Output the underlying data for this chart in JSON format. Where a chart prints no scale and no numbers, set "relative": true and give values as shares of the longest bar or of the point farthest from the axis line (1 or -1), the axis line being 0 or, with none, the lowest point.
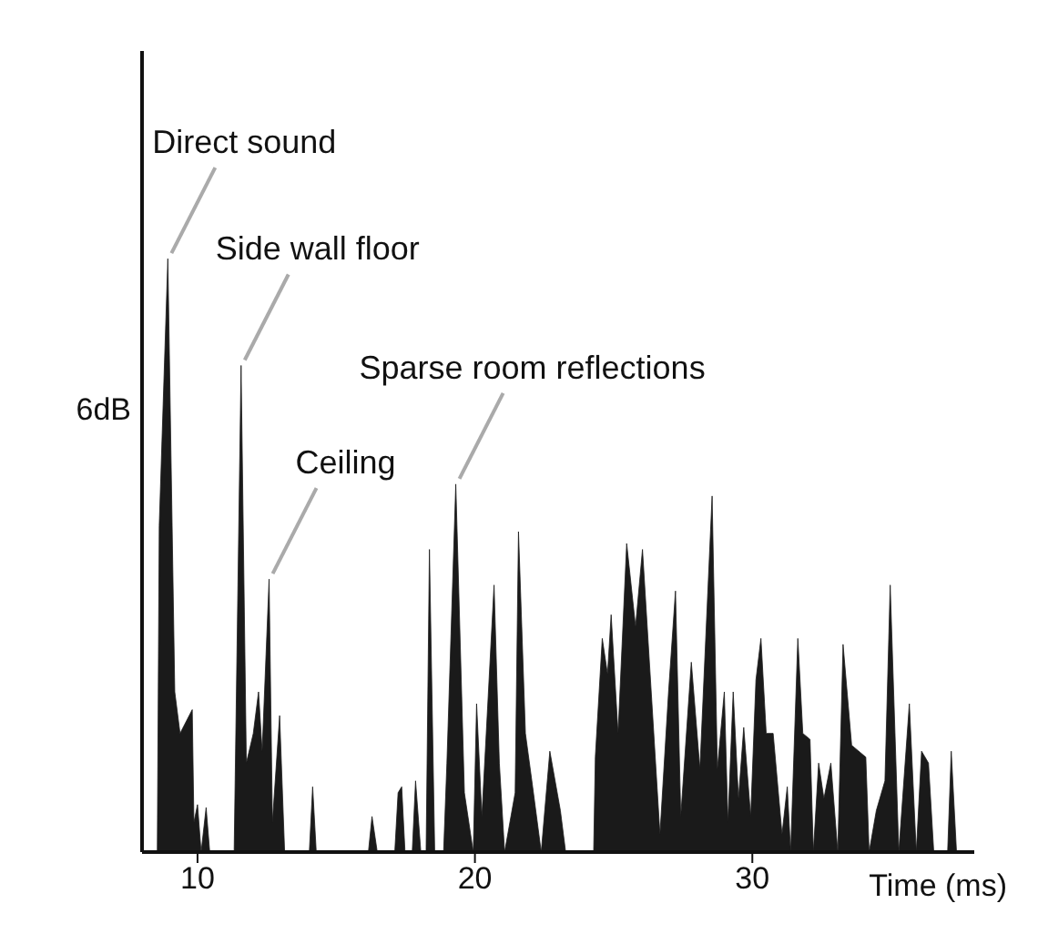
{
  "chart_data": {
    "type": "area",
    "relative": true,
    "color": "#1a1a1a",
    "xlabel": "Time (ms)",
    "ylabel": "6dB",
    "xlim": [
      8,
      38
    ],
    "xticks": [
      10,
      20,
      30
    ],
    "grid": false,
    "legend": false,
    "x": [
      8.55,
      8.62,
      8.93,
      9.18,
      9.37,
      9.81,
      9.87,
      10.0,
      10.13,
      10.31,
      10.44,
      11.32,
      11.57,
      11.76,
      12.01,
      12.2,
      12.33,
      12.58,
      12.7,
      12.96,
      13.14,
      14.03,
      14.15,
      14.28,
      16.16,
      16.29,
      16.48,
      17.11,
      17.23,
      17.36,
      17.48,
      17.74,
      17.86,
      18.05,
      18.24,
      18.36,
      18.55,
      18.87,
      18.99,
      19.31,
      19.62,
      19.94,
      20.06,
      20.25,
      20.69,
      20.88,
      21.07,
      21.45,
      21.57,
      21.82,
      22.08,
      22.39,
      22.7,
      23.08,
      23.27,
      24.28,
      24.34,
      24.59,
      24.78,
      24.91,
      25.16,
      25.47,
      25.79,
      26.04,
      26.67,
      26.98,
      27.23,
      27.42,
      27.8,
      28.11,
      28.55,
      28.74,
      28.99,
      29.12,
      29.31,
      29.5,
      29.69,
      29.94,
      30.13,
      30.31,
      30.5,
      30.75,
      31.07,
      31.26,
      31.38,
      31.64,
      31.82,
      32.08,
      32.2,
      32.39,
      32.58,
      32.83,
      33.08,
      33.27,
      33.58,
      34.09,
      34.21,
      34.47,
      34.78,
      34.97,
      35.28,
      35.66,
      35.91,
      36.1,
      36.35,
      36.54,
      37.04,
      37.17,
      37.36
    ],
    "values": [
      0,
      0.55,
      1.0,
      0.27,
      0.2,
      0.24,
      0.05,
      0.08,
      0,
      0.075,
      0,
      0,
      0.82,
      0.15,
      0.2,
      0.27,
      0.17,
      0.46,
      0.05,
      0.23,
      0,
      0,
      0.11,
      0,
      0,
      0.06,
      0,
      0,
      0.1,
      0.11,
      0,
      0,
      0.12,
      0,
      0,
      0.51,
      0,
      0,
      0.15,
      0.62,
      0.1,
      0,
      0.25,
      0.06,
      0.45,
      0.15,
      0,
      0.1,
      0.54,
      0.2,
      0.11,
      0,
      0.17,
      0.07,
      0,
      0,
      0.16,
      0.36,
      0.3,
      0.4,
      0.2,
      0.52,
      0.38,
      0.51,
      0.03,
      0.27,
      0.44,
      0.06,
      0.32,
      0.14,
      0.6,
      0.14,
      0.27,
      0.05,
      0.27,
      0.09,
      0.21,
      0.06,
      0.29,
      0.36,
      0.2,
      0.2,
      0.03,
      0.11,
      0,
      0.36,
      0.2,
      0.19,
      0,
      0.15,
      0.09,
      0.15,
      0,
      0.35,
      0.18,
      0.16,
      0,
      0.07,
      0.12,
      0.45,
      0,
      0.25,
      0,
      0.17,
      0.15,
      0,
      0,
      0.17,
      0
    ],
    "annotations": [
      {
        "text": "Direct sound",
        "x": 8.93,
        "y": 1.0
      },
      {
        "text": "Side wall floor",
        "x": 11.57,
        "y": 0.82
      },
      {
        "text": "Ceiling",
        "x": 12.58,
        "y": 0.46
      },
      {
        "text": "Sparse room reflections",
        "x": 19.31,
        "y": 0.62
      }
    ]
  }
}
